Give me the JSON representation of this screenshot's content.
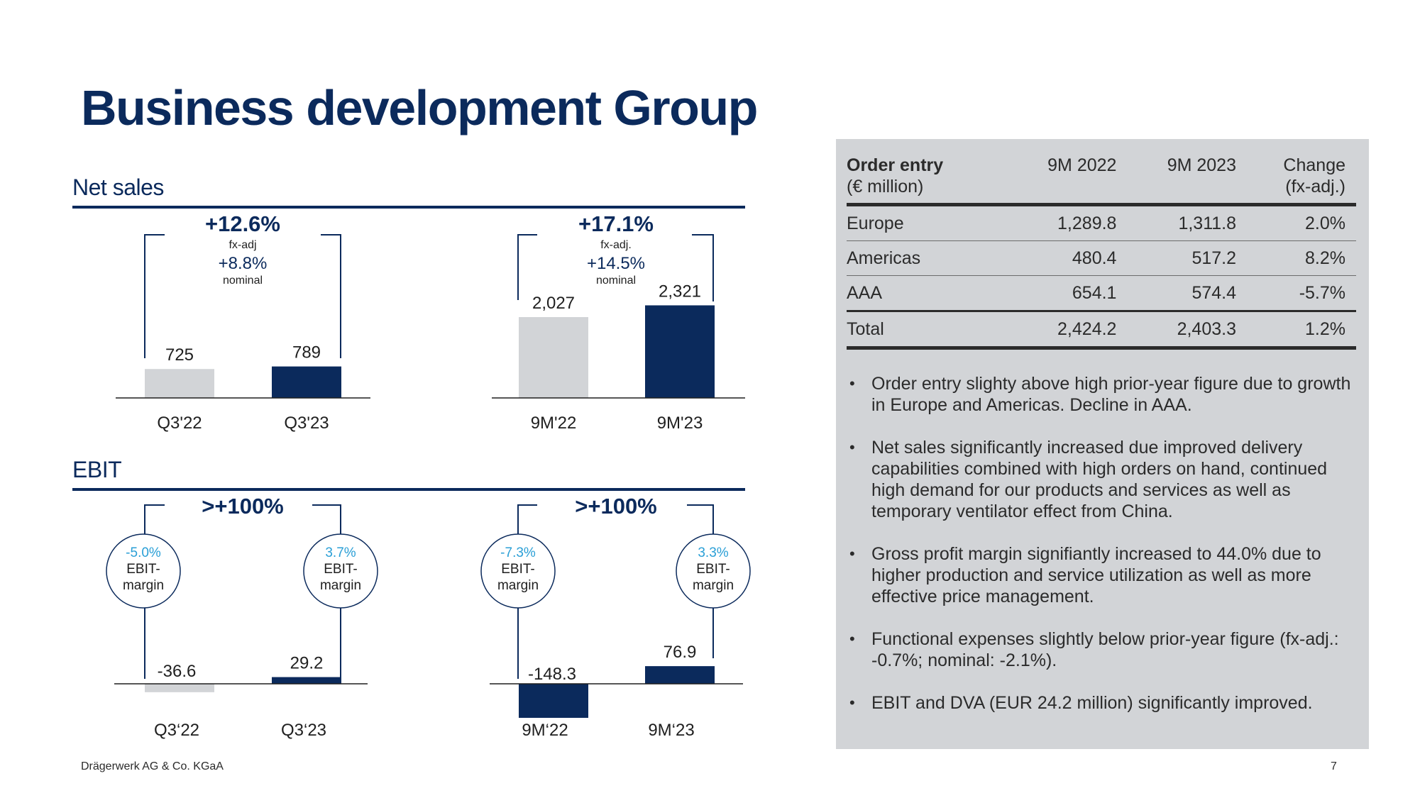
{
  "title": "Business development Group",
  "footer": "Drägerwerk AG & Co. KGaA",
  "page_number": "7",
  "colors": {
    "navy": "#0b2a5c",
    "grey_bar": "#d2d4d7",
    "cyan_text": "#2a9fd6",
    "panel": "#d2d4d7"
  },
  "net_sales": {
    "section_title": "Net sales",
    "quarter": {
      "change_fx": "+12.6%",
      "fx_label": "fx-adj",
      "change_nominal": "+8.8%",
      "nominal_label": "nominal"
    },
    "nine_months": {
      "change_fx": "+17.1%",
      "fx_label": "fx-adj.",
      "change_nominal": "+14.5%",
      "nominal_label": "nominal"
    }
  },
  "ebit": {
    "section_title": "EBIT",
    "quarter": {
      "change": ">+100%",
      "margin_prev_value": "-5.0%",
      "margin_curr_value": "3.7%",
      "margin_label_1": "EBIT-",
      "margin_label_2": "margin"
    },
    "nine_months": {
      "change": ">+100%",
      "margin_prev_value": "-7.3%",
      "margin_curr_value": "3.3%",
      "margin_label_1": "EBIT-",
      "margin_label_2": "margin"
    }
  },
  "chart_data": [
    {
      "type": "bar",
      "categories": [
        "Q3'22",
        "Q3'23"
      ],
      "values": [
        725,
        789
      ],
      "value_labels": [
        "725",
        "789"
      ],
      "ylim": [
        0,
        2400
      ]
    },
    {
      "type": "bar",
      "categories": [
        "9M'22",
        "9M'23"
      ],
      "values": [
        2027,
        2321
      ],
      "value_labels": [
        "2,027",
        "2,321"
      ],
      "ylim": [
        0,
        2400
      ]
    },
    {
      "type": "bar",
      "categories": [
        "Q3‘22",
        "Q3‘23"
      ],
      "values": [
        -36.6,
        29.2
      ],
      "value_labels": [
        "-36.6",
        "29.2"
      ],
      "ylim": [
        -150,
        80
      ]
    },
    {
      "type": "bar",
      "categories": [
        "9M‘22",
        "9M‘23"
      ],
      "values": [
        -148.3,
        76.9
      ],
      "value_labels": [
        "-148.3",
        "76.9"
      ],
      "ylim": [
        -150,
        80
      ]
    }
  ],
  "order_entry": {
    "header": {
      "label_line1": "Order entry",
      "label_line2": "(€ million)",
      "col1": "9M 2022",
      "col2": "9M 2023",
      "col3_line1": "Change",
      "col3_line2": "(fx-adj.)"
    },
    "rows": [
      {
        "region": "Europe",
        "y2022": "1,289.8",
        "y2023": "1,311.8",
        "change": "2.0%"
      },
      {
        "region": "Americas",
        "y2022": "480.4",
        "y2023": "517.2",
        "change": "8.2%"
      },
      {
        "region": "AAA",
        "y2022": "654.1",
        "y2023": "574.4",
        "change": "-5.7%"
      }
    ],
    "total": {
      "region": "Total",
      "y2022": "2,424.2",
      "y2023": "2,403.3",
      "change": "1.2%"
    }
  },
  "bullets": [
    "Order entry slighty above high prior-year figure due to growth in Europe and Americas. Decline in AAA.",
    "Net sales significantly increased due improved delivery capabilities combined with high orders on hand, continued high demand for our products and services as well as temporary ventilator effect from China.",
    "Gross profit margin signifiantly increased to 44.0% due to higher production and service utilization as well as more effective price management.",
    "Functional expenses slightly below prior-year figure (fx-adj.: -0.7%; nominal: -2.1%).",
    "EBIT and DVA (EUR 24.2 million) significantly improved."
  ]
}
